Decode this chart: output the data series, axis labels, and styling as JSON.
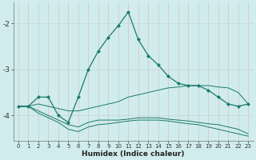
{
  "xlabel": "Humidex (Indice chaleur)",
  "bg_color": "#d0ecec",
  "grid_color": "#b8dede",
  "line_color": "#1a7a6e",
  "xlim": [
    -0.5,
    23.5
  ],
  "ylim": [
    -4.55,
    -1.55
  ],
  "yticks": [
    -4,
    -3,
    -2
  ],
  "xticks": [
    0,
    1,
    2,
    3,
    4,
    5,
    6,
    7,
    8,
    9,
    10,
    11,
    12,
    13,
    14,
    15,
    16,
    17,
    18,
    19,
    20,
    21,
    22,
    23
  ],
  "line1_x": [
    0,
    1,
    2,
    3,
    4,
    5,
    6,
    7,
    8,
    9,
    10,
    11,
    12,
    13,
    14,
    15,
    16,
    17,
    18,
    19,
    20,
    21,
    22,
    23
  ],
  "line1_y": [
    -3.8,
    -3.8,
    -3.6,
    -3.6,
    -4.0,
    -4.15,
    -3.6,
    -3.0,
    -2.6,
    -2.3,
    -2.05,
    -1.75,
    -2.35,
    -2.7,
    -2.9,
    -3.15,
    -3.3,
    -3.35,
    -3.35,
    -3.45,
    -3.6,
    -3.75,
    -3.8,
    -3.75
  ],
  "line2_x": [
    0,
    1,
    2,
    3,
    4,
    5,
    6,
    7,
    8,
    9,
    10,
    11,
    12,
    13,
    14,
    15,
    16,
    17,
    18,
    19,
    20,
    21,
    22,
    23
  ],
  "line2_y": [
    -3.8,
    -3.8,
    -3.75,
    -3.8,
    -3.85,
    -3.9,
    -3.9,
    -3.85,
    -3.8,
    -3.75,
    -3.7,
    -3.6,
    -3.55,
    -3.5,
    -3.45,
    -3.4,
    -3.38,
    -3.35,
    -3.35,
    -3.35,
    -3.38,
    -3.4,
    -3.5,
    -3.75
  ],
  "line3_x": [
    0,
    1,
    2,
    3,
    4,
    5,
    6,
    7,
    8,
    9,
    10,
    11,
    12,
    13,
    14,
    15,
    16,
    17,
    18,
    19,
    20,
    21,
    22,
    23
  ],
  "line3_y": [
    -3.8,
    -3.8,
    -3.9,
    -4.0,
    -4.1,
    -4.2,
    -4.25,
    -4.15,
    -4.1,
    -4.1,
    -4.1,
    -4.08,
    -4.05,
    -4.05,
    -4.05,
    -4.08,
    -4.1,
    -4.12,
    -4.15,
    -4.18,
    -4.2,
    -4.25,
    -4.3,
    -4.4
  ],
  "line4_x": [
    0,
    1,
    2,
    3,
    4,
    5,
    6,
    7,
    8,
    9,
    10,
    11,
    12,
    13,
    14,
    15,
    16,
    17,
    18,
    19,
    20,
    21,
    22,
    23
  ],
  "line4_y": [
    -3.8,
    -3.8,
    -3.95,
    -4.05,
    -4.15,
    -4.3,
    -4.35,
    -4.25,
    -4.2,
    -4.18,
    -4.15,
    -4.12,
    -4.1,
    -4.1,
    -4.1,
    -4.12,
    -4.15,
    -4.18,
    -4.2,
    -4.25,
    -4.3,
    -4.35,
    -4.4,
    -4.45
  ]
}
